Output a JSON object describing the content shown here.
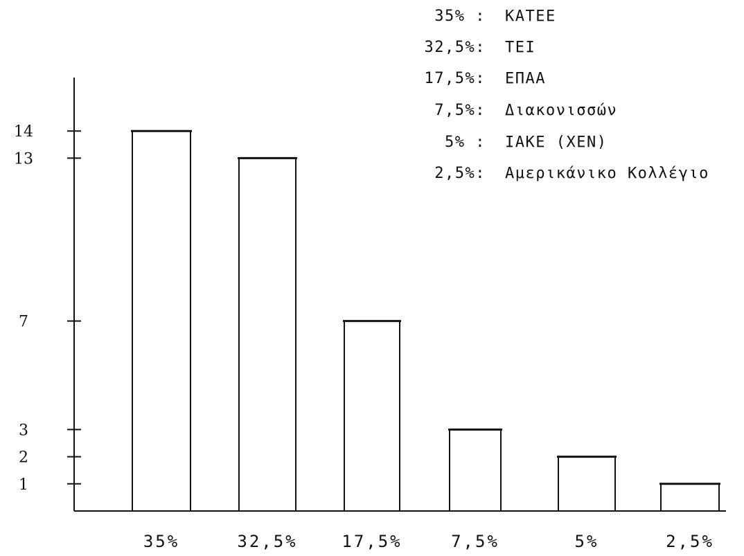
{
  "chart_data": {
    "type": "bar",
    "categories": [
      "35%",
      "32,5%",
      "17,5%",
      "7,5%",
      "5%",
      "2,5%"
    ],
    "values": [
      14,
      13,
      7,
      3,
      2,
      1
    ],
    "yticks": [
      {
        "value": 14,
        "label": "14"
      },
      {
        "value": 13,
        "label": "13"
      },
      {
        "value": 7,
        "label": "7"
      },
      {
        "value": 3,
        "label": "3"
      },
      {
        "value": 2,
        "label": "2"
      },
      {
        "value": 1,
        "label": "1"
      }
    ],
    "ylim": [
      0,
      15
    ],
    "grid": false,
    "title": "",
    "xlabel": "",
    "ylabel": "",
    "legend": {
      "placement": "top-right",
      "entries": [
        {
          "percent": "35%  :",
          "name": "ΚΑΤΕΕ"
        },
        {
          "percent": "32,5%:",
          "name": "ΤΕΙ"
        },
        {
          "percent": "17,5%:",
          "name": "ΕΠΑΑ"
        },
        {
          "percent": "7,5%:",
          "name": "Διακονισσών"
        },
        {
          "percent": "5%  :",
          "name": "ΙΑΚΕ (ΧΕΝ)"
        },
        {
          "percent": "2,5%:",
          "name": "Αμερικάνικο Κολλέγιο"
        }
      ]
    },
    "colors": {
      "ink": "#111111",
      "background": "#ffffff"
    }
  }
}
